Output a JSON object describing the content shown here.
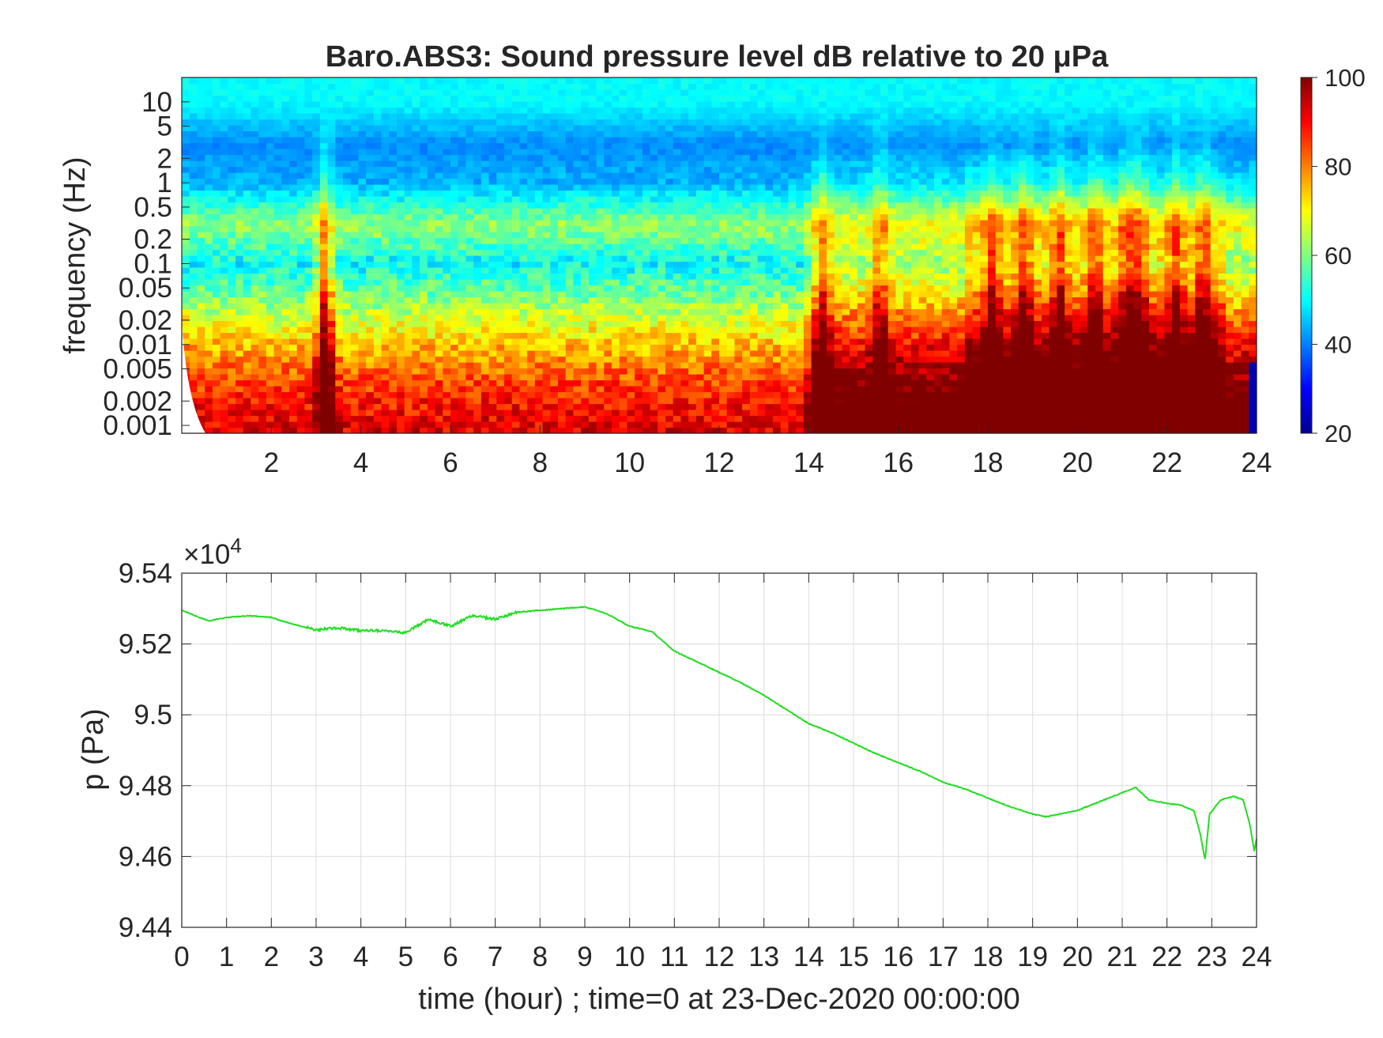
{
  "chart_data": [
    {
      "type": "heatmap",
      "title": "Baro.ABS3: Sound pressure level dB relative to 20 μPa",
      "ylabel": "frequency (Hz)",
      "xlabel": "",
      "x_ticks": [
        "2",
        "4",
        "6",
        "8",
        "10",
        "12",
        "14",
        "16",
        "18",
        "20",
        "22",
        "24"
      ],
      "xlim": [
        0,
        24
      ],
      "yscale": "log",
      "ylim": [
        0.0008,
        20
      ],
      "y_ticks": [
        "10",
        "5",
        "2",
        "1",
        "0.5",
        "0.2",
        "0.1",
        "0.05",
        "0.02",
        "0.01",
        "0.005",
        "0.002",
        "0.001"
      ],
      "colormap": "jet",
      "colorbar": {
        "range": [
          20,
          100
        ],
        "ticks": [
          "100",
          "80",
          "60",
          "40",
          "20"
        ],
        "label": ""
      },
      "grid": false,
      "level_profile_db_by_frequency": {
        "frequency_hz": [
          0.001,
          0.003,
          0.01,
          0.03,
          0.1,
          0.3,
          1,
          3,
          10
        ],
        "base_db": [
          92,
          86,
          75,
          63,
          50,
          62,
          44,
          41,
          50
        ]
      },
      "event_peaks_hour": [
        3.2,
        14.3,
        15.6,
        18.1,
        18.8,
        19.6,
        20.4,
        21.1,
        21.4,
        22.2,
        22.8
      ]
    },
    {
      "type": "line",
      "title": "",
      "xlabel": "time (hour) ; time=0 at 23-Dec-2020 00:00:00",
      "ylabel": "p (Pa)",
      "exponent_label": "×10",
      "exponent_power": "4",
      "xlim": [
        0,
        24
      ],
      "ylim": [
        94400,
        95400
      ],
      "x_ticks": [
        "0",
        "1",
        "2",
        "3",
        "4",
        "5",
        "6",
        "7",
        "8",
        "9",
        "10",
        "11",
        "12",
        "13",
        "14",
        "15",
        "16",
        "17",
        "18",
        "19",
        "20",
        "21",
        "22",
        "23",
        "24"
      ],
      "y_ticks": [
        "9.54",
        "9.52",
        "9.5",
        "9.48",
        "9.46",
        "9.44"
      ],
      "grid": true,
      "line_color": "#22dd22",
      "series": [
        {
          "name": "",
          "x": [
            0,
            0.3,
            0.6,
            1.0,
            1.5,
            2.0,
            2.5,
            3.0,
            3.5,
            4.0,
            4.5,
            5.0,
            5.5,
            6.0,
            6.5,
            7.0,
            7.5,
            8.0,
            8.5,
            9.0,
            9.5,
            10.0,
            10.5,
            11.0,
            11.5,
            12.0,
            12.5,
            13.0,
            13.5,
            14.0,
            14.5,
            15.0,
            15.5,
            16.0,
            16.5,
            17.0,
            17.5,
            18.0,
            18.5,
            19.0,
            19.3,
            19.6,
            20.0,
            20.5,
            21.0,
            21.3,
            21.6,
            22.0,
            22.3,
            22.6,
            22.75,
            22.85,
            22.95,
            23.2,
            23.5,
            23.7,
            23.85,
            23.95,
            24.0
          ],
          "y": [
            95295,
            95280,
            95265,
            95275,
            95280,
            95275,
            95255,
            95240,
            95245,
            95238,
            95238,
            95232,
            95270,
            95250,
            95280,
            95270,
            95290,
            95295,
            95300,
            95305,
            95285,
            95250,
            95235,
            95180,
            95150,
            95120,
            95090,
            95055,
            95015,
            94975,
            94950,
            94920,
            94890,
            94865,
            94840,
            94810,
            94790,
            94765,
            94740,
            94720,
            94712,
            94720,
            94730,
            94755,
            94780,
            94795,
            94760,
            94750,
            94745,
            94730,
            94660,
            94590,
            94720,
            94760,
            94770,
            94760,
            94690,
            94615,
            94650
          ]
        }
      ]
    }
  ]
}
